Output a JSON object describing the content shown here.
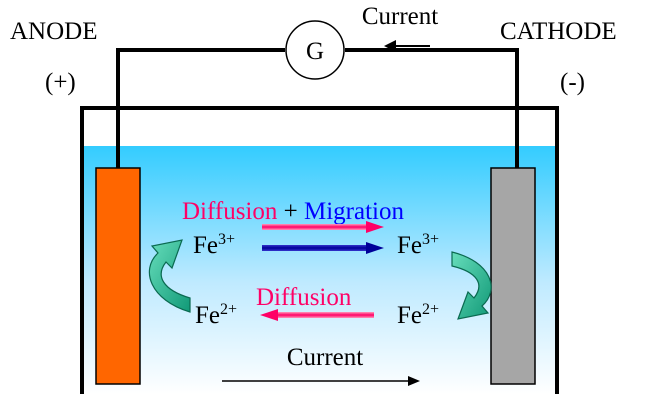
{
  "labels": {
    "anode": "ANODE",
    "cathode": "CATHODE",
    "anode_sign": "(+)",
    "cathode_sign": "(-)",
    "galvanometer": "G",
    "current_top": "Current",
    "current_bottom": "Current",
    "diffusion_top": "Diffusion",
    "plus": "+",
    "migration": "Migration",
    "diffusion_bottom": "Diffusion",
    "fe3_left_base": "Fe",
    "fe3_left_sup": "3+",
    "fe3_right_base": "Fe",
    "fe3_right_sup": "3+",
    "fe2_left_base": "Fe",
    "fe2_left_sup": "2+",
    "fe2_right_base": "Fe",
    "fe2_right_sup": "2+"
  },
  "colors": {
    "anode_electrode": "#ff6600",
    "cathode_electrode": "#a6a6a6",
    "electrolyte_top": "#33ccff",
    "electrolyte_bottom": "#ffffff",
    "diffusion_text": "#ff0066",
    "migration_text": "#0000ff",
    "diffusion_arrow": "#ff0066",
    "migration_arrow": "#000099",
    "curved_arrow": "#33cc99",
    "line": "#000000"
  }
}
